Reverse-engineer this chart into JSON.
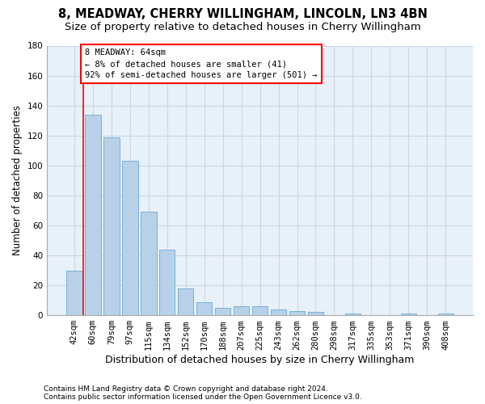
{
  "title": "8, MEADWAY, CHERRY WILLINGHAM, LINCOLN, LN3 4BN",
  "subtitle": "Size of property relative to detached houses in Cherry Willingham",
  "xlabel": "Distribution of detached houses by size in Cherry Willingham",
  "ylabel": "Number of detached properties",
  "footnote1": "Contains HM Land Registry data © Crown copyright and database right 2024.",
  "footnote2": "Contains public sector information licensed under the Open Government Licence v3.0.",
  "categories": [
    "42sqm",
    "60sqm",
    "79sqm",
    "97sqm",
    "115sqm",
    "134sqm",
    "152sqm",
    "170sqm",
    "188sqm",
    "207sqm",
    "225sqm",
    "243sqm",
    "262sqm",
    "280sqm",
    "298sqm",
    "317sqm",
    "335sqm",
    "353sqm",
    "371sqm",
    "390sqm",
    "408sqm"
  ],
  "values": [
    30,
    134,
    119,
    103,
    69,
    44,
    18,
    9,
    5,
    6,
    6,
    4,
    3,
    2,
    0,
    1,
    0,
    0,
    1,
    0,
    1
  ],
  "bar_color": "#b8d0e8",
  "bar_edge_color": "#6aaad4",
  "grid_color": "#c8d8e8",
  "background_color": "#e8f0f8",
  "annotation_line1": "8 MEADWAY: 64sqm",
  "annotation_line2": "← 8% of detached houses are smaller (41)",
  "annotation_line3": "92% of semi-detached houses are larger (501) →",
  "annotation_box_facecolor": "white",
  "annotation_box_edgecolor": "red",
  "vline_x_index": 0.5,
  "ylim": [
    0,
    180
  ],
  "yticks": [
    0,
    20,
    40,
    60,
    80,
    100,
    120,
    140,
    160,
    180
  ],
  "title_fontsize": 10.5,
  "subtitle_fontsize": 9.5,
  "tick_fontsize": 7.5,
  "ylabel_fontsize": 8.5,
  "xlabel_fontsize": 9,
  "annotation_fontsize": 7.5,
  "footnote_fontsize": 6.5
}
